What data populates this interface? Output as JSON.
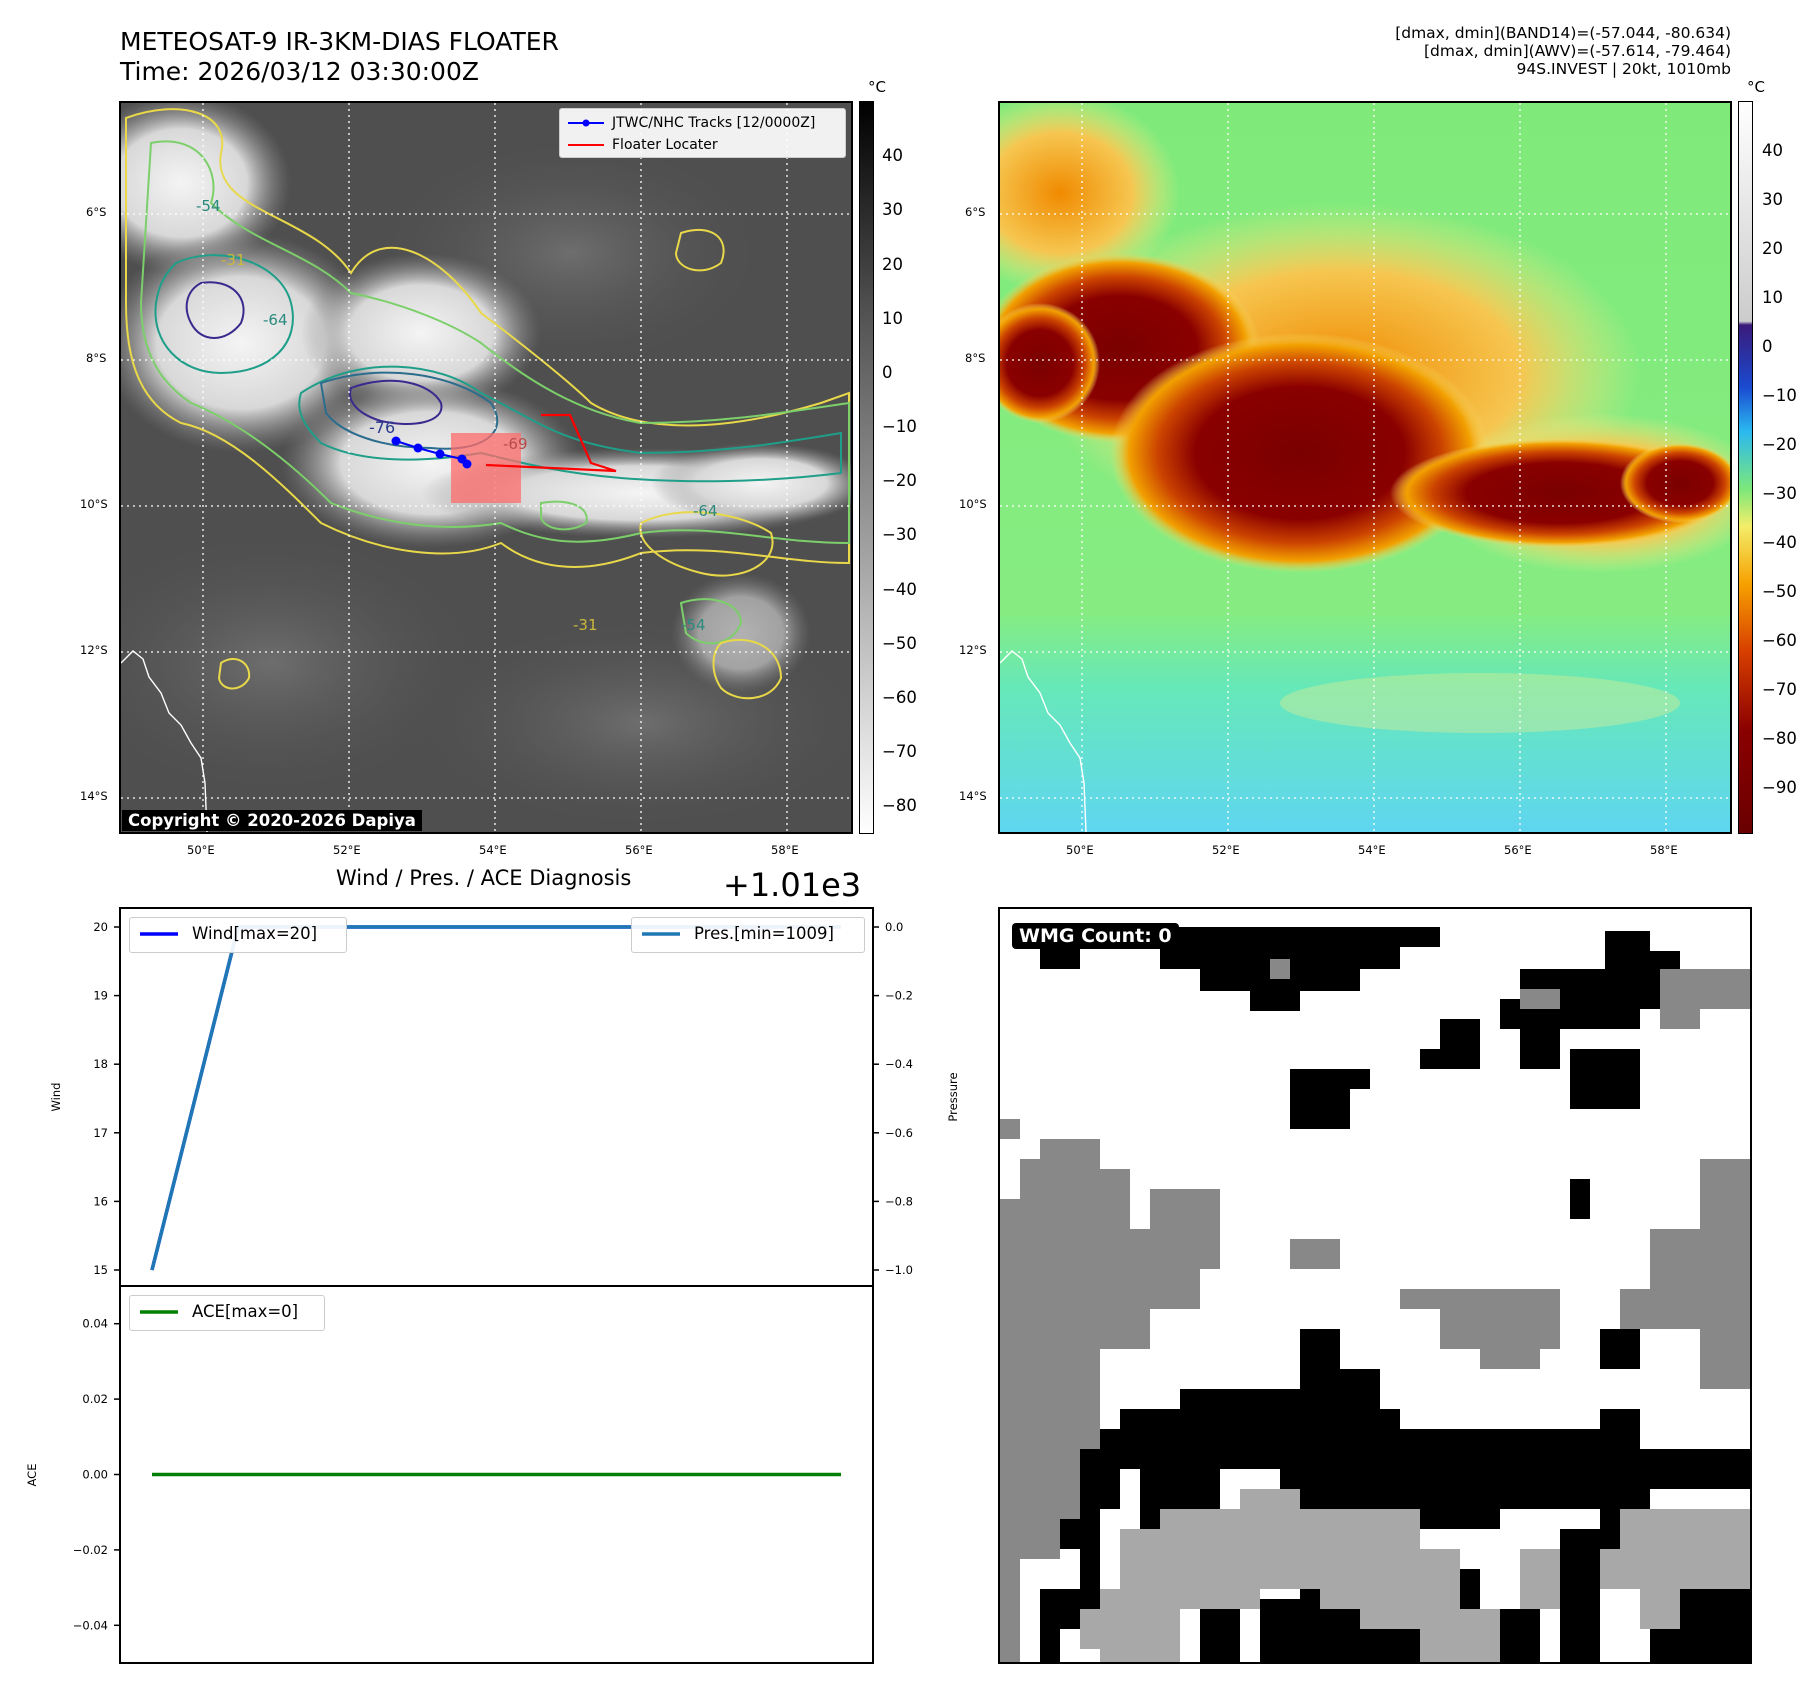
{
  "header": {
    "title_line1": "METEOSAT-9 IR-3KM-DIAS FLOATER",
    "title_line2": "Time: 2026/03/12 03:30:00Z",
    "stats_line1": "[dmax, dmin](BAND14)=(-57.044, -80.634)",
    "stats_line2": "[dmax, dmin](AWV)=(-57.614, -79.464)",
    "stats_line3": "94S.INVEST | 20kt, 1010mb"
  },
  "map_axes": {
    "lat_labels": [
      "6°S",
      "8°S",
      "10°S",
      "12°S",
      "14°S"
    ],
    "lon_labels": [
      "50°E",
      "52°E",
      "54°E",
      "56°E",
      "58°E"
    ]
  },
  "ir_panel": {
    "legend": {
      "track_label": "JTWC/NHC Tracks [12/0000Z]",
      "locator_label": "Floater Locater"
    },
    "copyright": "Copyright © 2020-2026 Dapiya",
    "contour_labels": [
      "-54",
      "-31",
      "-64",
      "-76",
      "-69",
      "-64",
      "-31",
      "-54"
    ],
    "colorbar": {
      "unit": "°C",
      "ticks": [
        "40",
        "30",
        "20",
        "10",
        "0",
        "−10",
        "−20",
        "−30",
        "−40",
        "−50",
        "−60",
        "−70",
        "−80"
      ]
    }
  },
  "awv_panel": {
    "colorbar": {
      "unit": "°C",
      "ticks": [
        "40",
        "30",
        "20",
        "10",
        "0",
        "−10",
        "−20",
        "−30",
        "−40",
        "−50",
        "−60",
        "−70",
        "−80",
        "−90"
      ]
    }
  },
  "diagnosis": {
    "title": "Wind / Pres. / ACE Diagnosis",
    "offset_label": "+1.01e3",
    "wind_ylabel": "Wind",
    "pressure_ylabel": "Pressure",
    "ace_ylabel": "ACE",
    "wind_legend": "Wind[max=20]",
    "pres_legend": "Pres.[min=1009]",
    "ace_legend": "ACE[max=0]",
    "wind_ticks": [
      "20",
      "19",
      "18",
      "17",
      "16",
      "15"
    ],
    "pres_ticks": [
      "0.0",
      "−0.2",
      "−0.4",
      "−0.6",
      "−0.8",
      "−1.0"
    ],
    "ace_ticks": [
      "0.04",
      "0.02",
      "0.00",
      "−0.02",
      "−0.04"
    ]
  },
  "wmg": {
    "label": "WMG Count: 0"
  },
  "chart_data": [
    {
      "type": "line",
      "title": "Wind / Pres. / ACE Diagnosis",
      "ylabel": "Wind",
      "ylim": [
        15,
        20
      ],
      "y2label": "Pressure",
      "y2lim": [
        -1.0,
        0.0
      ],
      "y2_offset": 1010,
      "series": [
        {
          "name": "Wind[max=20]",
          "color": "#0000ff",
          "x": [
            0,
            1,
            2,
            3,
            4,
            5,
            6,
            7,
            8
          ],
          "values": [
            15,
            20,
            20,
            20,
            20,
            20,
            20,
            20,
            20
          ]
        },
        {
          "name": "Pres.[min=1009]",
          "color": "#1f77b4",
          "x": [
            0,
            1,
            2,
            3,
            4,
            5,
            6,
            7,
            8
          ],
          "values": [
            -1.0,
            0.0,
            0.0,
            0.0,
            0.0,
            0.0,
            0.0,
            0.0,
            0.0
          ]
        }
      ]
    },
    {
      "type": "line",
      "ylabel": "ACE",
      "ylim": [
        -0.05,
        0.05
      ],
      "series": [
        {
          "name": "ACE[max=0]",
          "color": "#008000",
          "x": [
            0,
            1,
            2,
            3,
            4,
            5,
            6,
            7,
            8
          ],
          "values": [
            0,
            0,
            0,
            0,
            0,
            0,
            0,
            0,
            0
          ]
        }
      ]
    }
  ],
  "colors": {
    "track": "#0000ff",
    "locator": "#ff0000",
    "wind_line": "#1f77b4",
    "ace_line": "#008000"
  }
}
